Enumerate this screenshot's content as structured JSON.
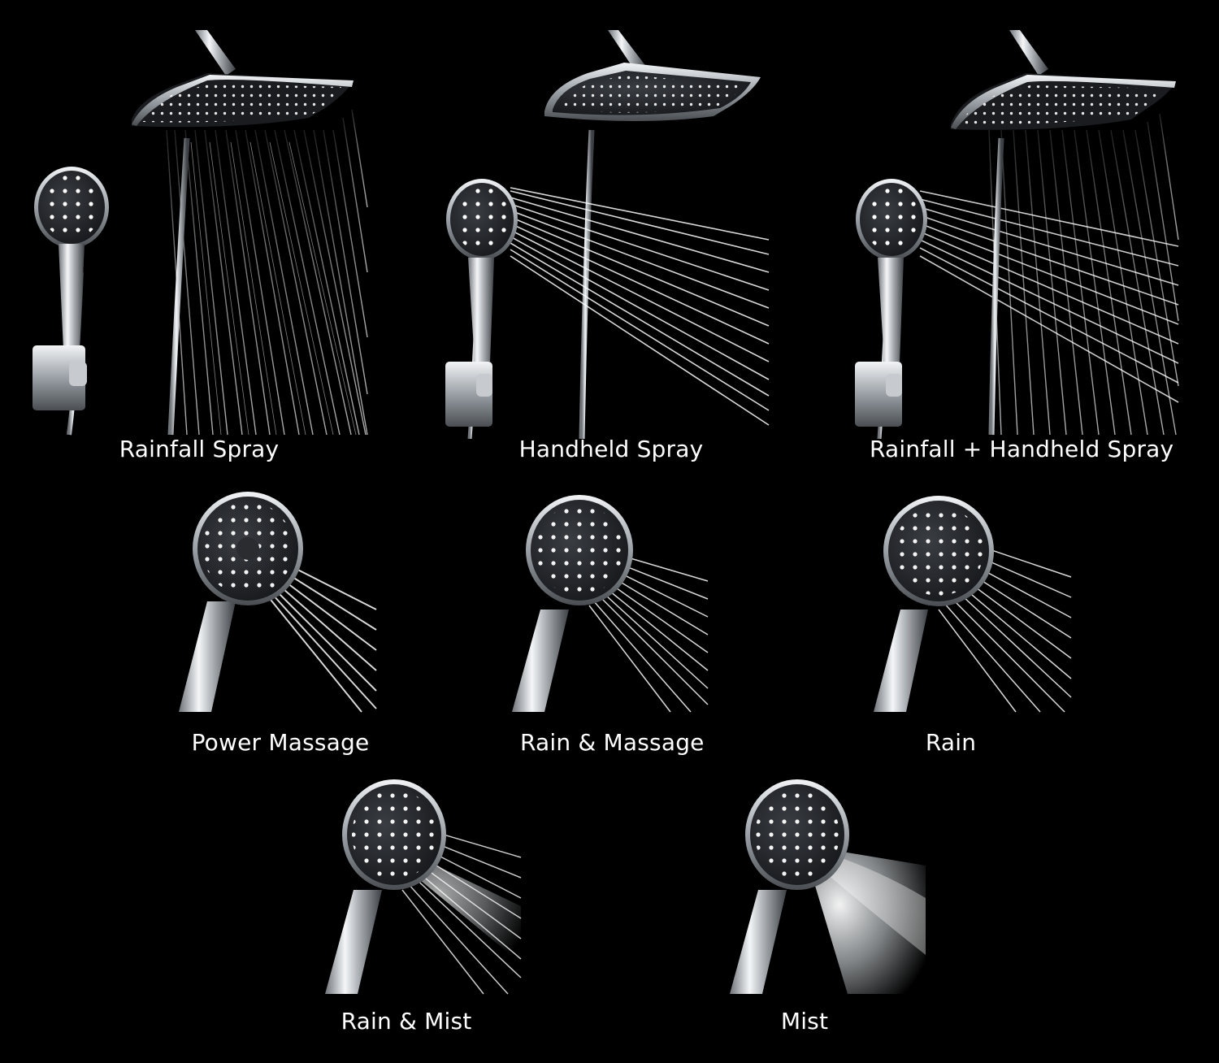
{
  "colors": {
    "background": "#000000",
    "chrome": "#d9dcdf",
    "face": "#2a2c30",
    "nozzle": "#ffffff",
    "water": "#e8eef2",
    "label": "#ffffff"
  },
  "modes": [
    {
      "id": "rainfall",
      "label": "Rainfall Spray"
    },
    {
      "id": "handheld",
      "label": "Handheld Spray"
    },
    {
      "id": "combo",
      "label": "Rainfall + Handheld Spray"
    },
    {
      "id": "power-massage",
      "label": "Power Massage"
    },
    {
      "id": "rain-massage",
      "label": "Rain & Massage"
    },
    {
      "id": "rain",
      "label": "Rain"
    },
    {
      "id": "rain-mist",
      "label": "Rain & Mist"
    },
    {
      "id": "mist",
      "label": "Mist"
    }
  ]
}
